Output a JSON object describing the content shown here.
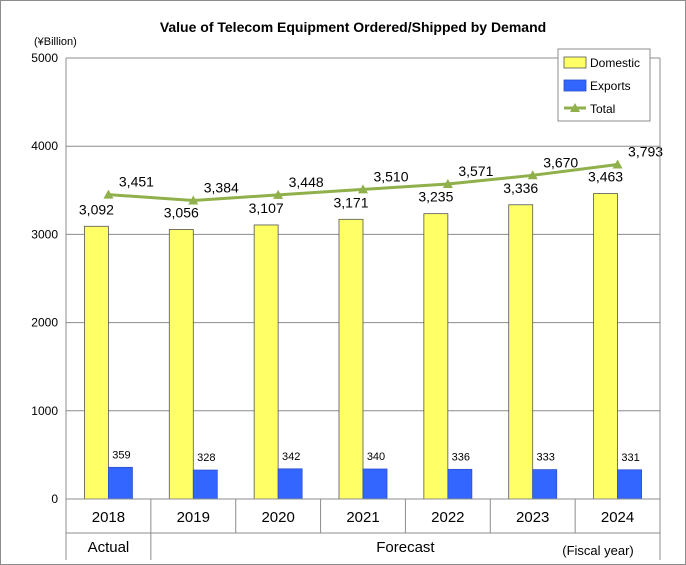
{
  "chart_data": {
    "type": "bar",
    "title": "Value of  Telecom Equipment Ordered/Shipped by Demand",
    "unit_label": "(¥Billion)",
    "xlabel": "(Fiscal year)",
    "categories": [
      "2018",
      "2019",
      "2020",
      "2021",
      "2022",
      "2023",
      "2024"
    ],
    "category_groups": [
      {
        "label": "Actual",
        "start": 0,
        "end": 0
      },
      {
        "label": "Forecast",
        "start": 1,
        "end": 6
      }
    ],
    "series": [
      {
        "name": "Domestic",
        "type": "bar",
        "color": "#ffff66",
        "values": [
          3092,
          3056,
          3107,
          3171,
          3235,
          3336,
          3463
        ],
        "labels": [
          "3,092",
          "3,056",
          "3,107",
          "3,171",
          "3,235",
          "3,336",
          "3,463"
        ]
      },
      {
        "name": "Exports",
        "type": "bar",
        "color": "#3366ff",
        "values": [
          359,
          328,
          342,
          340,
          336,
          333,
          331
        ],
        "labels": [
          "359",
          "328",
          "342",
          "340",
          "336",
          "333",
          "331"
        ]
      },
      {
        "name": "Total",
        "type": "line",
        "color": "#8fb04a",
        "values": [
          3451,
          3384,
          3448,
          3510,
          3571,
          3670,
          3793
        ],
        "labels": [
          "3,451",
          "3,384",
          "3,448",
          "3,510",
          "3,571",
          "3,670",
          "3,793"
        ]
      }
    ],
    "ylim": [
      0,
      5000
    ],
    "yticks": [
      0,
      1000,
      2000,
      3000,
      4000,
      5000
    ],
    "grid": true,
    "legend_position": "top-right"
  }
}
